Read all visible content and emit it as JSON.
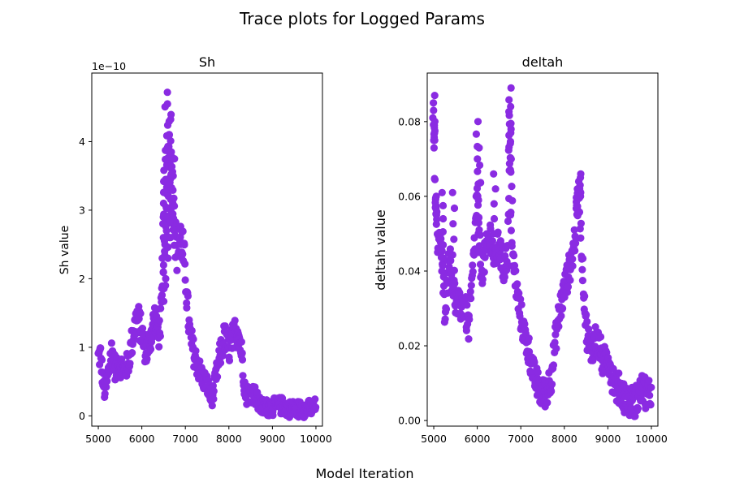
{
  "figure": {
    "title": "Trace plots for Logged Params",
    "xlabel": "Model Iteration"
  },
  "chart_data": [
    {
      "type": "scatter",
      "title": "Sh",
      "ylabel": "Sh value",
      "offset_text": "1e−10",
      "xlim": [
        4850,
        10150
      ],
      "ylim": [
        -0.15,
        5.0
      ],
      "xticks": [
        5000,
        6000,
        7000,
        8000,
        9000,
        10000
      ],
      "yticks": [
        0,
        1,
        2,
        3,
        4
      ],
      "y_multiplier": 1e-10,
      "color": "#8a2be2",
      "series": [
        {
          "trace_keypoints": [
            [
              5000,
              0.85
            ],
            [
              5050,
              0.9
            ],
            [
              5100,
              0.55
            ],
            [
              5150,
              0.35
            ],
            [
              5200,
              0.5
            ],
            [
              5250,
              0.7
            ],
            [
              5300,
              0.95
            ],
            [
              5350,
              0.85
            ],
            [
              5400,
              0.65
            ],
            [
              5500,
              0.75
            ],
            [
              5600,
              0.65
            ],
            [
              5700,
              0.8
            ],
            [
              5800,
              1.2
            ],
            [
              5900,
              1.45
            ],
            [
              6000,
              1.2
            ],
            [
              6100,
              0.9
            ],
            [
              6200,
              1.15
            ],
            [
              6300,
              1.45
            ],
            [
              6400,
              1.2
            ],
            [
              6500,
              1.9
            ],
            [
              6550,
              2.7
            ],
            [
              6600,
              3.6
            ],
            [
              6650,
              4.2
            ],
            [
              6700,
              3.5
            ],
            [
              6750,
              2.8
            ],
            [
              6800,
              2.4
            ],
            [
              6900,
              2.6
            ],
            [
              7000,
              2.1
            ],
            [
              7050,
              1.6
            ],
            [
              7100,
              1.2
            ],
            [
              7200,
              0.9
            ],
            [
              7300,
              0.7
            ],
            [
              7400,
              0.55
            ],
            [
              7500,
              0.45
            ],
            [
              7550,
              0.35
            ],
            [
              7600,
              0.25
            ],
            [
              7650,
              0.35
            ],
            [
              7700,
              0.55
            ],
            [
              7800,
              0.9
            ],
            [
              7900,
              1.15
            ],
            [
              8000,
              0.95
            ],
            [
              8100,
              1.15
            ],
            [
              8200,
              1.3
            ],
            [
              8300,
              0.9
            ],
            [
              8350,
              0.5
            ],
            [
              8400,
              0.3
            ],
            [
              8500,
              0.35
            ],
            [
              8600,
              0.3
            ],
            [
              8700,
              0.15
            ],
            [
              8800,
              0.12
            ],
            [
              9000,
              0.13
            ],
            [
              9200,
              0.15
            ],
            [
              9400,
              0.1
            ],
            [
              9600,
              0.1
            ],
            [
              9800,
              0.1
            ],
            [
              10000,
              0.13
            ]
          ]
        }
      ]
    },
    {
      "type": "scatter",
      "title": "deltah",
      "ylabel": "deltah value",
      "xlim": [
        4850,
        10150
      ],
      "ylim": [
        -0.0015,
        0.093
      ],
      "xticks": [
        5000,
        6000,
        7000,
        8000,
        9000,
        10000
      ],
      "yticks": [
        0.0,
        0.02,
        0.04,
        0.06,
        0.08
      ],
      "ytick_labels": [
        "0.00",
        "0.02",
        "0.04",
        "0.06",
        "0.08"
      ],
      "color": "#8a2be2",
      "series": [
        {
          "trace_keypoints": [
            [
              5000,
              0.075
            ],
            [
              5050,
              0.055
            ],
            [
              5100,
              0.045
            ],
            [
              5150,
              0.05
            ],
            [
              5200,
              0.04
            ],
            [
              5250,
              0.03
            ],
            [
              5300,
              0.035
            ],
            [
              5350,
              0.045
            ],
            [
              5400,
              0.04
            ],
            [
              5500,
              0.032
            ],
            [
              5600,
              0.03
            ],
            [
              5700,
              0.032
            ],
            [
              5750,
              0.028
            ],
            [
              5800,
              0.025
            ],
            [
              5850,
              0.032
            ],
            [
              5900,
              0.04
            ],
            [
              6000,
              0.06
            ],
            [
              6050,
              0.045
            ],
            [
              6100,
              0.04
            ],
            [
              6200,
              0.045
            ],
            [
              6300,
              0.05
            ],
            [
              6400,
              0.042
            ],
            [
              6500,
              0.048
            ],
            [
              6600,
              0.04
            ],
            [
              6700,
              0.045
            ],
            [
              6750,
              0.07
            ],
            [
              6800,
              0.045
            ],
            [
              6900,
              0.035
            ],
            [
              7000,
              0.028
            ],
            [
              7100,
              0.022
            ],
            [
              7200,
              0.018
            ],
            [
              7300,
              0.012
            ],
            [
              7400,
              0.009
            ],
            [
              7500,
              0.007
            ],
            [
              7600,
              0.008
            ],
            [
              7700,
              0.012
            ],
            [
              7800,
              0.022
            ],
            [
              7900,
              0.03
            ],
            [
              8000,
              0.035
            ],
            [
              8100,
              0.04
            ],
            [
              8200,
              0.045
            ],
            [
              8300,
              0.055
            ],
            [
              8350,
              0.06
            ],
            [
              8400,
              0.045
            ],
            [
              8450,
              0.035
            ],
            [
              8500,
              0.025
            ],
            [
              8600,
              0.018
            ],
            [
              8700,
              0.022
            ],
            [
              8800,
              0.02
            ],
            [
              8900,
              0.015
            ],
            [
              9000,
              0.018
            ],
            [
              9100,
              0.012
            ],
            [
              9200,
              0.009
            ],
            [
              9300,
              0.008
            ],
            [
              9400,
              0.006
            ],
            [
              9500,
              0.005
            ],
            [
              9600,
              0.005
            ],
            [
              9700,
              0.006
            ],
            [
              9800,
              0.009
            ],
            [
              9900,
              0.006
            ],
            [
              10000,
              0.008
            ]
          ],
          "spikes": [
            [
              5000,
              0.087
            ],
            [
              5000,
              0.08
            ],
            [
              5050,
              0.06
            ],
            [
              6000,
              0.08
            ],
            [
              6050,
              0.073
            ],
            [
              6400,
              0.066
            ],
            [
              6750,
              0.089
            ],
            [
              6750,
              0.084
            ],
            [
              6780,
              0.078
            ],
            [
              8350,
              0.066
            ],
            [
              8300,
              0.062
            ],
            [
              5200,
              0.061
            ],
            [
              5450,
              0.061
            ]
          ]
        }
      ]
    }
  ]
}
